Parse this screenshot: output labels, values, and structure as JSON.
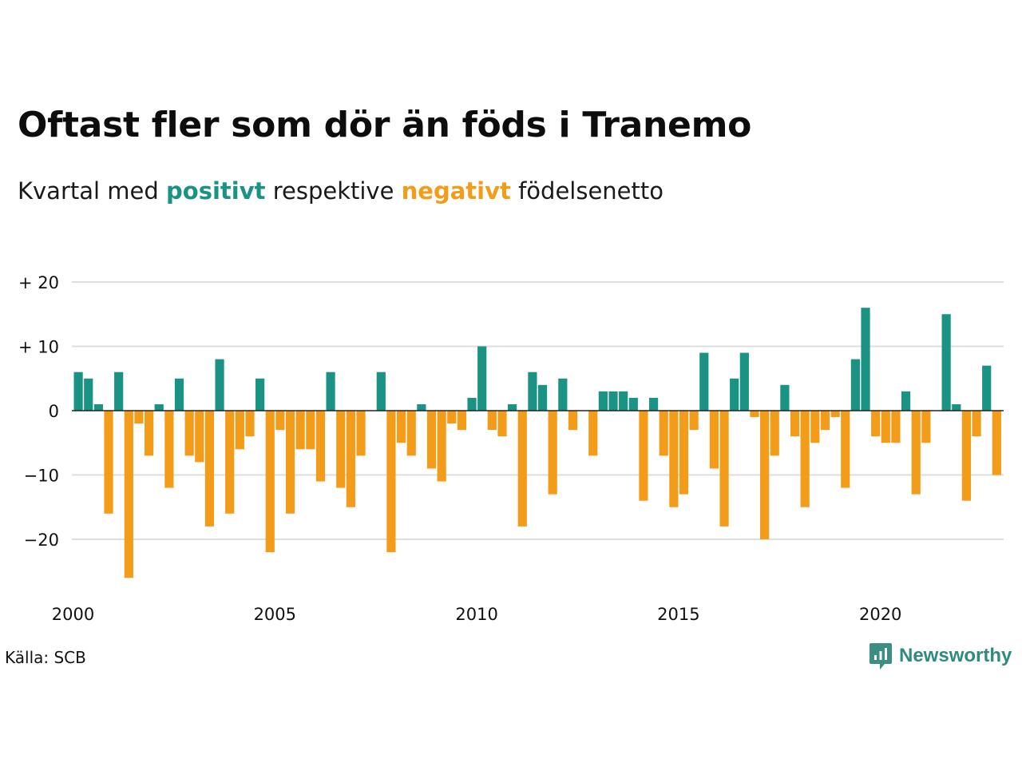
{
  "title": "Oftast fler som dör än föds i Tranemo",
  "subtitle": {
    "prefix": "Kvartal med ",
    "positive": "positivt",
    "middle": " respektive ",
    "negative": "negativt",
    "suffix": " födelsenetto"
  },
  "source": "Källa: SCB",
  "brand": {
    "name": "Newsworthy",
    "icon": "newsworthy-logo-icon",
    "color": "#2f8a80"
  },
  "colors": {
    "positive": "#1a9384",
    "negative": "#f39c1a",
    "grid": "#dddddd"
  },
  "chart_data": {
    "type": "bar",
    "xlabel": "",
    "ylabel": "",
    "x_start": "2000 Q1",
    "x_ticks": [
      "2000",
      "2005",
      "2010",
      "2015",
      "2020"
    ],
    "y_ticks": [
      {
        "value": 20,
        "label": "+ 20"
      },
      {
        "value": 10,
        "label": "+ 10"
      },
      {
        "value": 0,
        "label": "0"
      },
      {
        "value": -10,
        "label": "−10"
      },
      {
        "value": -20,
        "label": "−20"
      }
    ],
    "ylim": [
      -27,
      21
    ],
    "grid": true,
    "values": [
      6,
      5,
      1,
      -16,
      6,
      -26,
      -2,
      -7,
      1,
      -12,
      5,
      -7,
      -8,
      -18,
      8,
      -16,
      -6,
      -4,
      5,
      -22,
      -3,
      -16,
      -6,
      -6,
      -11,
      6,
      -12,
      -15,
      -7,
      0,
      6,
      -22,
      -5,
      -7,
      1,
      -9,
      -11,
      -2,
      -3,
      2,
      10,
      -3,
      -4,
      1,
      -18,
      6,
      4,
      -13,
      5,
      -3,
      0,
      -7,
      3,
      3,
      3,
      2,
      -14,
      2,
      -7,
      -15,
      -13,
      -3,
      9,
      -9,
      -18,
      5,
      9,
      -1,
      -20,
      -7,
      4,
      -4,
      -15,
      -5,
      -3,
      -1,
      -12,
      8,
      16,
      -4,
      -5,
      -5,
      3,
      -13,
      -5,
      0,
      15,
      1,
      -14,
      -4,
      7,
      -10
    ]
  }
}
